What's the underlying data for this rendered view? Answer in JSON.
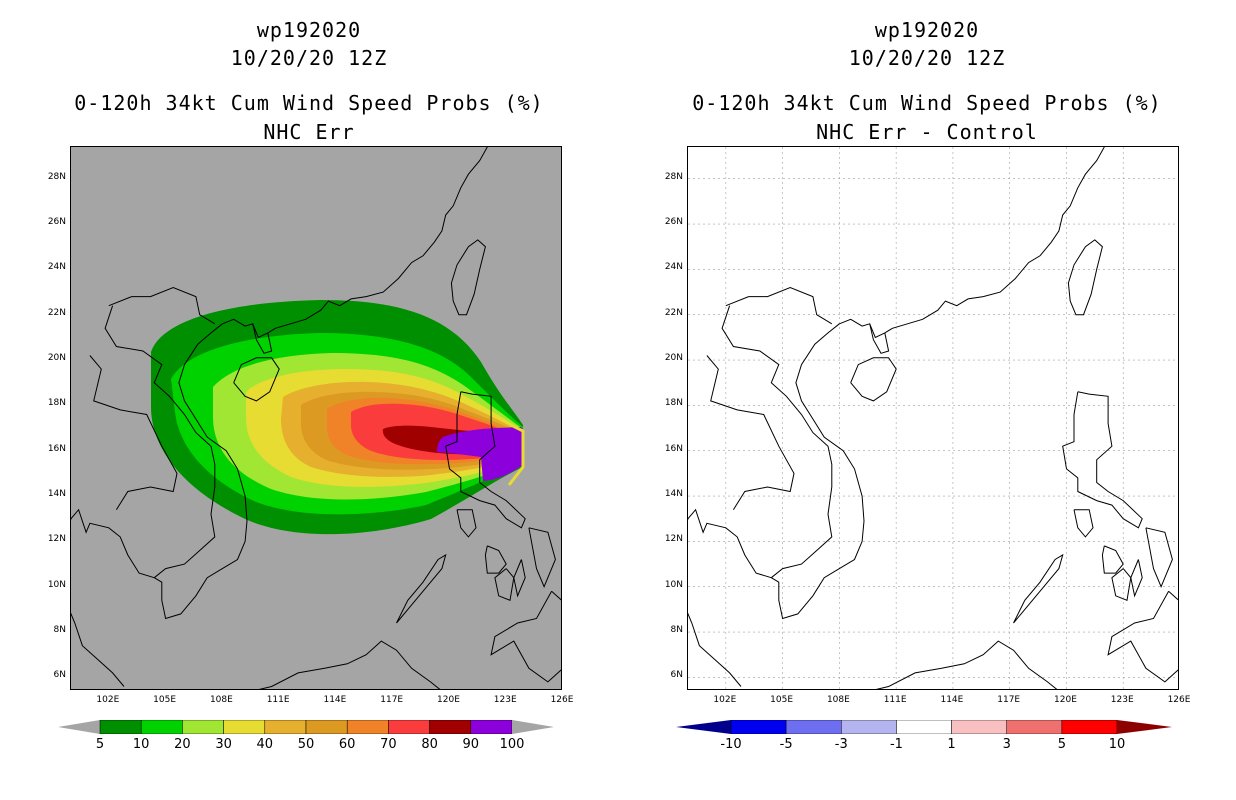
{
  "left": {
    "title_line1": "wp192020",
    "title_line2": "10/20/20 12Z",
    "title_line3": "0-120h 34kt Cum Wind Speed Probs (%)",
    "title_line4": "NHC Err",
    "colorbar": {
      "colors": [
        "#008f00",
        "#00d200",
        "#a0e632",
        "#e6dc32",
        "#e6af2d",
        "#dc9a23",
        "#f08228",
        "#fa3c3c",
        "#a00000",
        "#8c00dc"
      ],
      "labels": [
        "5",
        "10",
        "20",
        "30",
        "40",
        "50",
        "60",
        "70",
        "80",
        "90",
        "100"
      ],
      "under_color": "#a5a5a5",
      "over_color": "#a5a5a5"
    }
  },
  "right": {
    "title_line1": "wp192020",
    "title_line2": "10/20/20 12Z",
    "title_line3": "0-120h 34kt Cum Wind Speed Probs (%)",
    "title_line4": "NHC Err - Control",
    "colorbar": {
      "colors": [
        "#0000f0",
        "#6e6ef0",
        "#b4b4f0",
        "#ffffff",
        "#f8c0c0",
        "#f07070",
        "#ff0000"
      ],
      "labels": [
        "-10",
        "-5",
        "-3",
        "-1",
        "1",
        "3",
        "5",
        "10"
      ],
      "under_color": "#00008c",
      "over_color": "#8c0000"
    }
  },
  "axes": {
    "lat_labels": [
      "28N",
      "26N",
      "24N",
      "22N",
      "20N",
      "18N",
      "16N",
      "14N",
      "12N",
      "10N",
      "8N",
      "6N"
    ],
    "lat_values": [
      28,
      26,
      24,
      22,
      20,
      18,
      16,
      14,
      12,
      10,
      8,
      6
    ],
    "lon_labels": [
      "102E",
      "105E",
      "108E",
      "111E",
      "114E",
      "117E",
      "120E",
      "123E",
      "126E"
    ],
    "lon_values": [
      102,
      105,
      108,
      111,
      114,
      117,
      120,
      123,
      126
    ],
    "lon_range": [
      100,
      126
    ],
    "lat_range": [
      5.4,
      29.4
    ]
  },
  "map_colors": {
    "coast": "#000000",
    "grid": "#a0a0a0"
  }
}
